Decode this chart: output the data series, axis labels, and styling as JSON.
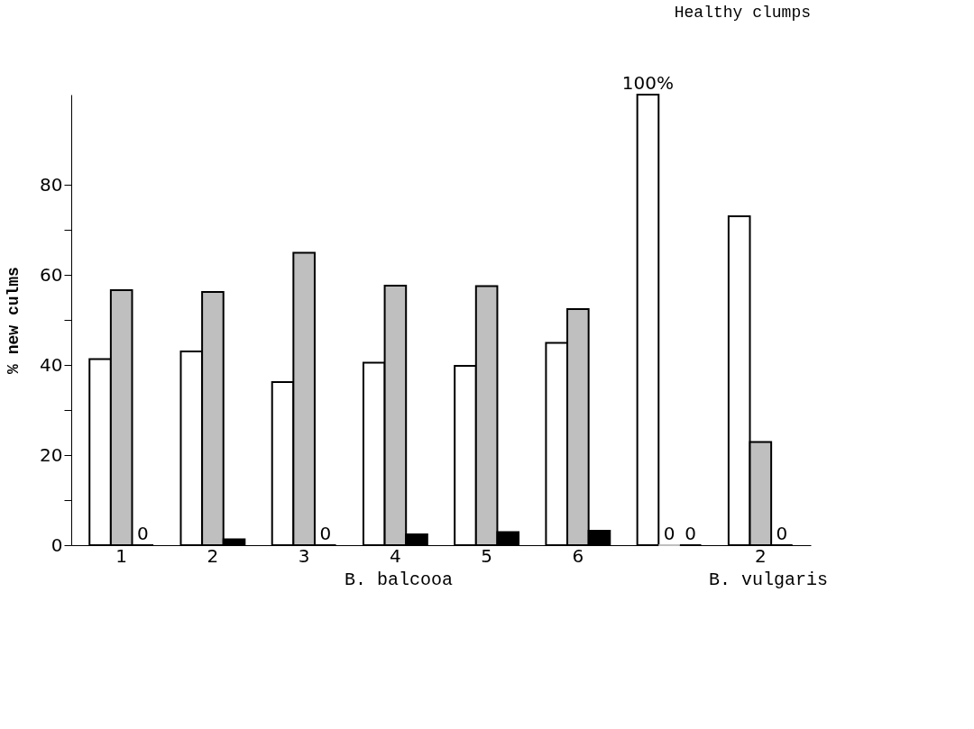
{
  "chart_data": {
    "type": "bar",
    "title": "Healthy clumps",
    "ylabel": "% new culms",
    "categories": [
      "1",
      "2",
      "3",
      "4",
      "5",
      "6",
      null,
      "2"
    ],
    "series": [
      {
        "color": "#ffffff",
        "values": [
          41.3,
          43,
          36.2,
          40.5,
          39.8,
          44.9,
          100,
          73
        ],
        "value_labels": [
          null,
          null,
          null,
          null,
          null,
          null,
          "100%",
          null
        ]
      },
      {
        "color": "#bfbfbf",
        "values": [
          56.6,
          56.2,
          64.9,
          57.6,
          57.5,
          52.4,
          0,
          22.9
        ],
        "value_labels": [
          null,
          null,
          null,
          null,
          null,
          null,
          "0",
          null
        ]
      },
      {
        "color": "#000000",
        "values": [
          0,
          1.3,
          0,
          2.4,
          2.9,
          3.2,
          0,
          0
        ],
        "value_labels": [
          "0",
          null,
          "0",
          null,
          null,
          null,
          "0",
          "0"
        ]
      }
    ],
    "ylim": [
      0,
      100
    ],
    "yticks": [
      0,
      {
        "value": 10,
        "label": null
      },
      20,
      {
        "value": 30,
        "label": null
      },
      40,
      {
        "value": 50,
        "label": null
      },
      60,
      {
        "value": 70,
        "label": null
      },
      80
    ],
    "grid": false,
    "annotations": [
      "B. balcooa",
      "B. vulgaris"
    ]
  }
}
